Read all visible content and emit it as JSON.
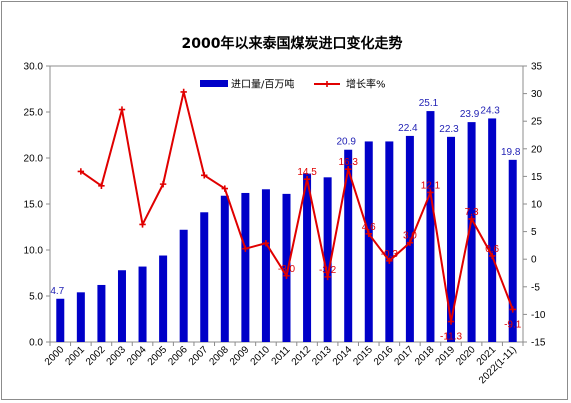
{
  "chart_data": {
    "type": "bar",
    "title": "2000年以来泰国煤炭进口变化走势",
    "categories": [
      "2000",
      "2001",
      "2002",
      "2003",
      "2004",
      "2005",
      "2006",
      "2007",
      "2008",
      "2009",
      "2010",
      "2011",
      "2012",
      "2013",
      "2014",
      "2015",
      "2016",
      "2017",
      "2018",
      "2019",
      "2020",
      "2021",
      "2022(1-11)"
    ],
    "series": [
      {
        "name": "进口量/百万吨",
        "type": "bar",
        "axis": "left",
        "color": "#0000c8",
        "values": [
          4.7,
          5.4,
          6.2,
          7.8,
          8.2,
          9.4,
          12.2,
          14.1,
          15.9,
          16.2,
          16.6,
          16.1,
          18.3,
          17.9,
          20.9,
          21.8,
          21.8,
          22.4,
          25.1,
          22.3,
          23.9,
          24.3,
          19.8
        ],
        "labels": [
          "4.7",
          "",
          "",
          "",
          "",
          "",
          "",
          "",
          "",
          "",
          "",
          "",
          "",
          "",
          "20.9",
          "",
          "",
          "22.4",
          "25.1",
          "22.3",
          "23.9",
          "24.3",
          "19.8"
        ]
      },
      {
        "name": "增长率%",
        "type": "line",
        "axis": "right",
        "color": "#e00000",
        "values": [
          null,
          15.9,
          13.3,
          27.1,
          6.3,
          13.6,
          30.3,
          15.2,
          12.8,
          1.9,
          2.9,
          -3.0,
          14.5,
          -3.2,
          16.3,
          4.6,
          -0.3,
          3.0,
          12.1,
          -11.3,
          7.3,
          0.6,
          -9.1
        ],
        "labels": [
          "",
          "",
          "",
          "",
          "",
          "",
          "",
          "",
          "",
          "",
          "",
          "-3.0",
          "14.5",
          "-3.2",
          "16.3",
          "4.6",
          "-0.3",
          "3.0",
          "12.1",
          "-11.3",
          "7.3",
          "0.6",
          "-9.1"
        ]
      }
    ],
    "y_left": {
      "min": 0,
      "max": 30,
      "step": 5,
      "tick_labels": [
        "0.0",
        "5.0",
        "10.0",
        "15.0",
        "20.0",
        "25.0",
        "30.0"
      ]
    },
    "y_right": {
      "min": -15,
      "max": 35,
      "step": 5,
      "tick_labels": [
        "-15",
        "-10",
        "-5",
        "0",
        "5",
        "10",
        "15",
        "20",
        "25",
        "30",
        "35"
      ]
    },
    "xlabel": "",
    "ylabel_left": "",
    "ylabel_right": "",
    "grid": false,
    "legend_position": "top"
  }
}
